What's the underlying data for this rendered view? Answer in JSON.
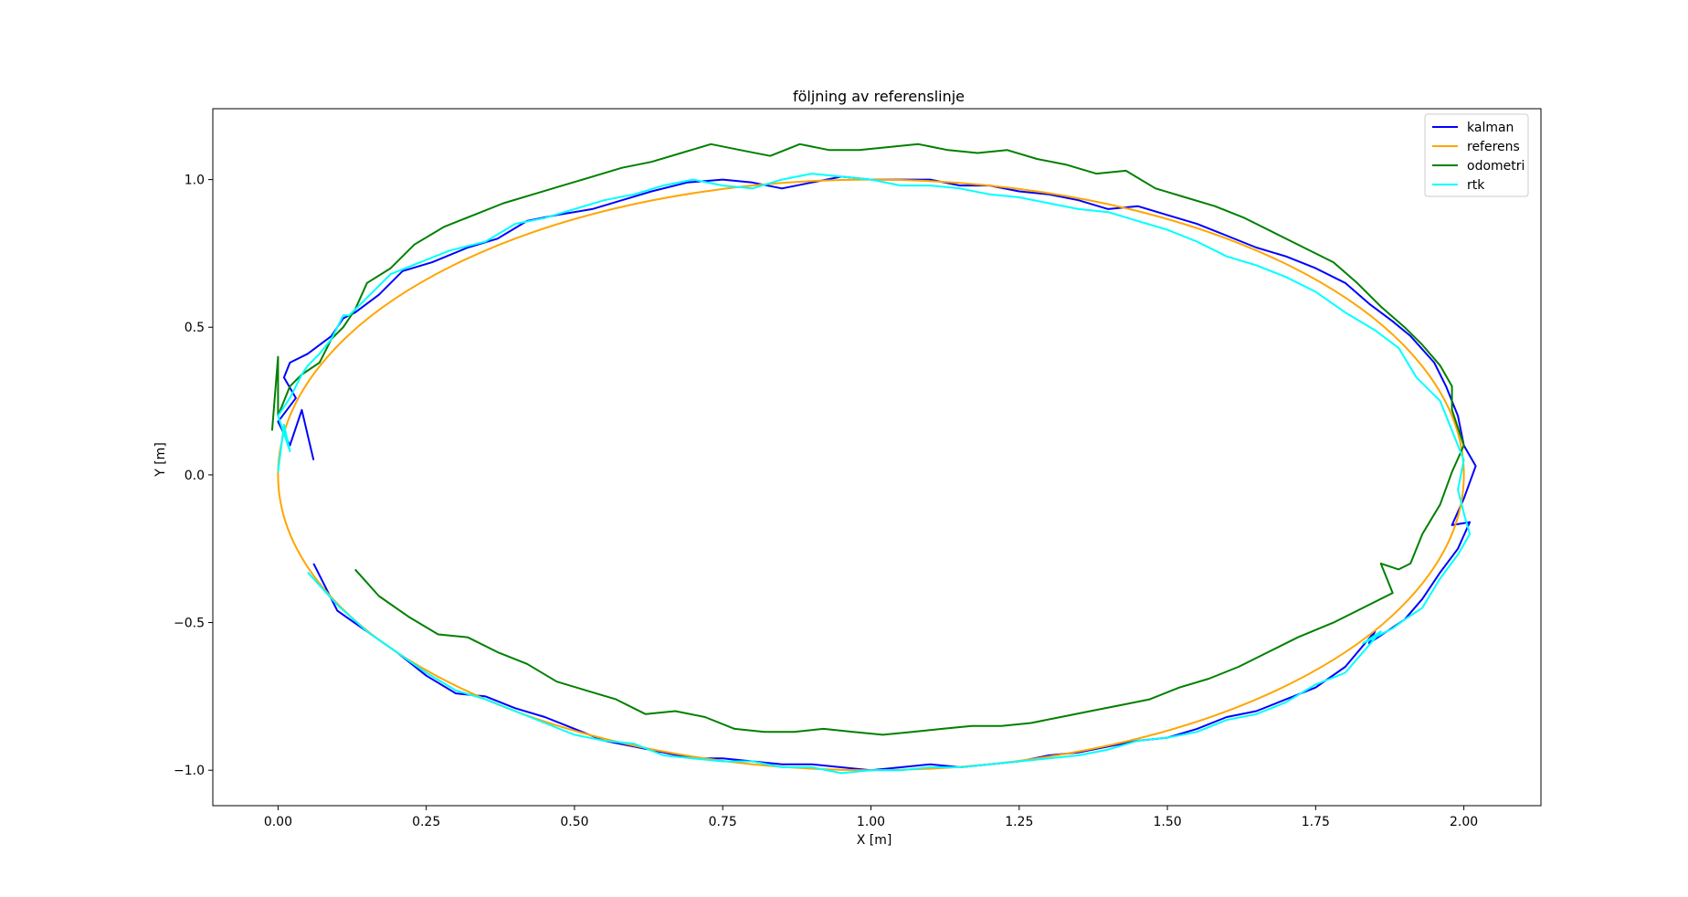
{
  "chart_data": {
    "type": "line",
    "title": "följning av referenslinje",
    "xlabel": "X [m]",
    "ylabel": "Y [m]",
    "xlim": [
      -0.11,
      2.13
    ],
    "ylim": [
      -1.12,
      1.24
    ],
    "xticks": [
      0.0,
      0.25,
      0.5,
      0.75,
      1.0,
      1.25,
      1.5,
      1.75,
      2.0
    ],
    "xtick_labels": [
      "0.00",
      "0.25",
      "0.50",
      "0.75",
      "1.00",
      "1.25",
      "1.50",
      "1.75",
      "2.00"
    ],
    "yticks": [
      -1.0,
      -0.5,
      0.0,
      0.5,
      1.0
    ],
    "ytick_labels": [
      "−1.0",
      "−0.5",
      "0.0",
      "0.5",
      "1.0"
    ],
    "grid": false,
    "legend": "top-right",
    "series": [
      {
        "name": "kalman",
        "color": "#0000ff",
        "x": [
          0.06,
          0.04,
          0.02,
          0.0,
          0.03,
          0.01,
          0.02,
          0.05,
          0.09,
          0.11,
          0.13,
          0.17,
          0.21,
          0.26,
          0.32,
          0.37,
          0.42,
          0.47,
          0.53,
          0.58,
          0.63,
          0.69,
          0.75,
          0.8,
          0.85,
          0.9,
          0.95,
          1.0,
          1.05,
          1.1,
          1.15,
          1.2,
          1.25,
          1.3,
          1.35,
          1.4,
          1.45,
          1.5,
          1.55,
          1.6,
          1.65,
          1.7,
          1.75,
          1.8,
          1.84,
          1.88,
          1.91,
          1.95,
          1.97,
          1.99,
          2.0,
          2.02,
          2.0,
          1.98,
          2.01,
          1.99,
          1.96,
          1.93,
          1.9,
          1.87,
          1.84,
          1.85,
          1.8,
          1.75,
          1.7,
          1.65,
          1.6,
          1.55,
          1.5,
          1.45,
          1.4,
          1.35,
          1.3,
          1.25,
          1.2,
          1.15,
          1.1,
          1.05,
          1.0,
          0.95,
          0.9,
          0.85,
          0.8,
          0.75,
          0.7,
          0.65,
          0.6,
          0.55,
          0.5,
          0.45,
          0.4,
          0.35,
          0.3,
          0.25,
          0.2,
          0.15,
          0.1,
          0.06
        ],
        "y": [
          0.05,
          0.22,
          0.1,
          0.18,
          0.26,
          0.33,
          0.38,
          0.41,
          0.47,
          0.53,
          0.55,
          0.61,
          0.69,
          0.72,
          0.77,
          0.8,
          0.86,
          0.88,
          0.9,
          0.93,
          0.96,
          0.99,
          1.0,
          0.99,
          0.97,
          0.99,
          1.01,
          1.0,
          1.0,
          1.0,
          0.98,
          0.98,
          0.96,
          0.95,
          0.93,
          0.9,
          0.91,
          0.88,
          0.85,
          0.81,
          0.77,
          0.74,
          0.7,
          0.65,
          0.58,
          0.52,
          0.47,
          0.38,
          0.3,
          0.2,
          0.1,
          0.03,
          -0.08,
          -0.17,
          -0.16,
          -0.25,
          -0.33,
          -0.42,
          -0.49,
          -0.53,
          -0.57,
          -0.53,
          -0.65,
          -0.72,
          -0.76,
          -0.8,
          -0.82,
          -0.86,
          -0.89,
          -0.9,
          -0.92,
          -0.94,
          -0.95,
          -0.97,
          -0.98,
          -0.99,
          -0.98,
          -0.99,
          -1.0,
          -0.99,
          -0.98,
          -0.98,
          -0.97,
          -0.96,
          -0.96,
          -0.94,
          -0.92,
          -0.9,
          -0.86,
          -0.82,
          -0.79,
          -0.75,
          -0.74,
          -0.68,
          -0.6,
          -0.53,
          -0.46,
          -0.3
        ]
      },
      {
        "name": "referens",
        "color": "#ffa500",
        "ellipse": {
          "cx": 1.0,
          "cy": 0.0,
          "rx": 1.0,
          "ry": 1.0
        }
      },
      {
        "name": "odometri",
        "color": "#008000",
        "x": [
          -0.01,
          0.0,
          0.0,
          0.02,
          0.04,
          0.07,
          0.09,
          0.11,
          0.13,
          0.15,
          0.19,
          0.23,
          0.28,
          0.33,
          0.38,
          0.43,
          0.48,
          0.53,
          0.58,
          0.63,
          0.68,
          0.73,
          0.78,
          0.83,
          0.88,
          0.93,
          0.98,
          1.03,
          1.08,
          1.13,
          1.18,
          1.23,
          1.28,
          1.33,
          1.38,
          1.43,
          1.48,
          1.53,
          1.58,
          1.63,
          1.68,
          1.73,
          1.78,
          1.82,
          1.86,
          1.9,
          1.93,
          1.96,
          1.98,
          1.98,
          2.0,
          1.98,
          1.96,
          1.93,
          1.91,
          1.89,
          1.86,
          1.88,
          1.82,
          1.78,
          1.72,
          1.67,
          1.62,
          1.57,
          1.52,
          1.47,
          1.42,
          1.37,
          1.32,
          1.27,
          1.22,
          1.17,
          1.12,
          1.07,
          1.02,
          0.97,
          0.92,
          0.87,
          0.82,
          0.77,
          0.72,
          0.67,
          0.62,
          0.57,
          0.52,
          0.47,
          0.42,
          0.37,
          0.32,
          0.27,
          0.22,
          0.17,
          0.13
        ],
        "y": [
          0.15,
          0.4,
          0.2,
          0.3,
          0.34,
          0.38,
          0.46,
          0.5,
          0.56,
          0.65,
          0.7,
          0.78,
          0.84,
          0.88,
          0.92,
          0.95,
          0.98,
          1.01,
          1.04,
          1.06,
          1.09,
          1.12,
          1.1,
          1.08,
          1.12,
          1.1,
          1.1,
          1.11,
          1.12,
          1.1,
          1.09,
          1.1,
          1.07,
          1.05,
          1.02,
          1.03,
          0.97,
          0.94,
          0.91,
          0.87,
          0.82,
          0.77,
          0.72,
          0.65,
          0.57,
          0.5,
          0.44,
          0.37,
          0.3,
          0.22,
          0.1,
          0.01,
          -0.1,
          -0.2,
          -0.3,
          -0.32,
          -0.3,
          -0.4,
          -0.46,
          -0.5,
          -0.55,
          -0.6,
          -0.65,
          -0.69,
          -0.72,
          -0.76,
          -0.78,
          -0.8,
          -0.82,
          -0.84,
          -0.85,
          -0.85,
          -0.86,
          -0.87,
          -0.88,
          -0.87,
          -0.86,
          -0.87,
          -0.87,
          -0.86,
          -0.82,
          -0.8,
          -0.81,
          -0.76,
          -0.73,
          -0.7,
          -0.64,
          -0.6,
          -0.55,
          -0.54,
          -0.48,
          -0.41,
          -0.32
        ]
      },
      {
        "name": "rtk",
        "color": "#00ffff",
        "x": [
          0.0,
          0.01,
          0.02,
          0.0,
          0.02,
          0.04,
          0.05,
          0.07,
          0.09,
          0.11,
          0.12,
          0.15,
          0.19,
          0.24,
          0.29,
          0.35,
          0.4,
          0.45,
          0.5,
          0.55,
          0.6,
          0.65,
          0.7,
          0.75,
          0.8,
          0.85,
          0.9,
          0.95,
          1.0,
          1.05,
          1.1,
          1.15,
          1.2,
          1.25,
          1.3,
          1.35,
          1.4,
          1.45,
          1.5,
          1.55,
          1.6,
          1.65,
          1.7,
          1.75,
          1.8,
          1.85,
          1.89,
          1.92,
          1.96,
          1.98,
          2.0,
          1.99,
          2.0,
          2.01,
          1.99,
          1.96,
          1.93,
          1.9,
          1.88,
          1.85,
          1.83,
          1.86,
          1.8,
          1.75,
          1.7,
          1.65,
          1.6,
          1.55,
          1.5,
          1.45,
          1.4,
          1.35,
          1.3,
          1.25,
          1.2,
          1.15,
          1.1,
          1.05,
          1.0,
          0.95,
          0.9,
          0.85,
          0.8,
          0.75,
          0.7,
          0.65,
          0.6,
          0.55,
          0.5,
          0.45,
          0.4,
          0.35,
          0.3,
          0.25,
          0.2,
          0.15,
          0.1,
          0.05
        ],
        "y": [
          0.01,
          0.17,
          0.08,
          0.2,
          0.26,
          0.34,
          0.37,
          0.41,
          0.46,
          0.54,
          0.54,
          0.6,
          0.68,
          0.72,
          0.76,
          0.79,
          0.85,
          0.87,
          0.9,
          0.93,
          0.95,
          0.98,
          1.0,
          0.98,
          0.97,
          1.0,
          1.02,
          1.01,
          1.0,
          0.98,
          0.98,
          0.97,
          0.95,
          0.94,
          0.92,
          0.9,
          0.89,
          0.86,
          0.83,
          0.79,
          0.74,
          0.71,
          0.67,
          0.62,
          0.55,
          0.49,
          0.43,
          0.33,
          0.25,
          0.15,
          0.05,
          -0.05,
          -0.13,
          -0.2,
          -0.27,
          -0.35,
          -0.45,
          -0.49,
          -0.52,
          -0.55,
          -0.57,
          -0.53,
          -0.67,
          -0.71,
          -0.77,
          -0.81,
          -0.83,
          -0.87,
          -0.89,
          -0.9,
          -0.93,
          -0.95,
          -0.96,
          -0.97,
          -0.98,
          -0.99,
          -0.99,
          -1.0,
          -1.0,
          -1.01,
          -0.99,
          -0.99,
          -0.97,
          -0.97,
          -0.96,
          -0.95,
          -0.91,
          -0.9,
          -0.88,
          -0.84,
          -0.8,
          -0.76,
          -0.73,
          -0.67,
          -0.6,
          -0.53,
          -0.44,
          -0.33
        ]
      }
    ]
  }
}
